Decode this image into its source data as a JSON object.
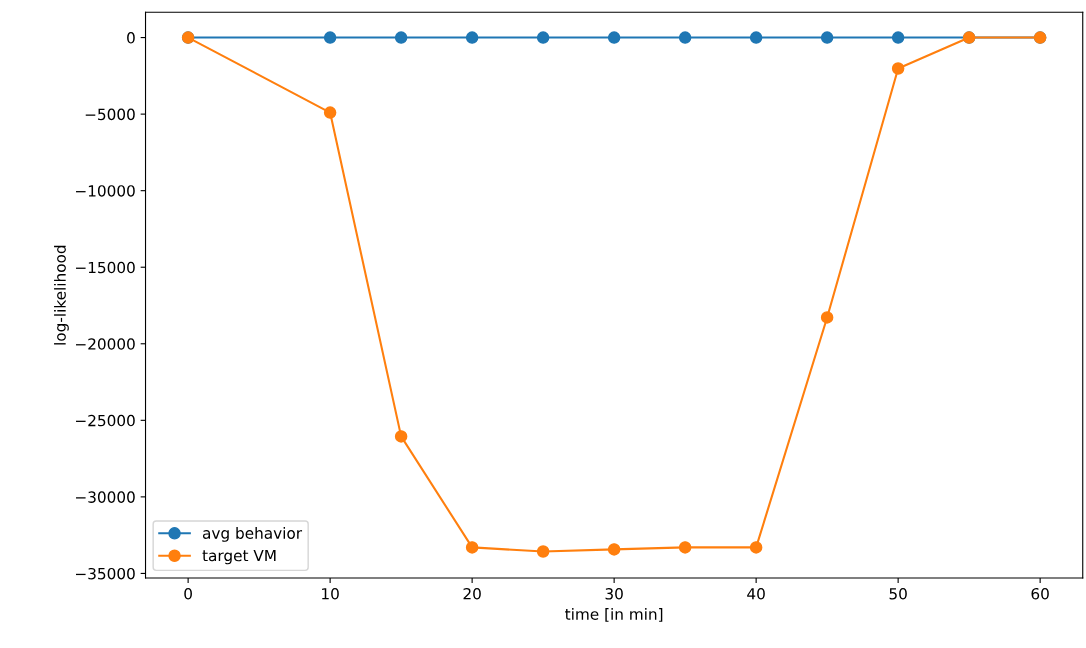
{
  "chart_data": {
    "type": "line",
    "xlabel": "time [in min]",
    "ylabel": "log-likelihood",
    "x": [
      0,
      10,
      15,
      20,
      25,
      30,
      35,
      40,
      45,
      50,
      55,
      60
    ],
    "series": [
      {
        "name": "avg behavior",
        "color": "#1f77b4",
        "values": [
          0,
          0,
          0,
          0,
          0,
          0,
          0,
          0,
          0,
          0,
          0,
          0
        ]
      },
      {
        "name": "target VM",
        "color": "#ff7f0e",
        "values": [
          0,
          -4900,
          -26050,
          -33300,
          -33570,
          -33430,
          -33300,
          -33300,
          -18280,
          -2020,
          0,
          0
        ]
      }
    ],
    "xlim": [
      -3,
      63
    ],
    "xticks": [
      0,
      10,
      20,
      30,
      40,
      50,
      60
    ],
    "ylim": [
      -35300,
      1650
    ],
    "yticks": [
      {
        "value": 0,
        "label": "0"
      },
      {
        "value": -5000,
        "label": "−5000"
      },
      {
        "value": -10000,
        "label": "−10000"
      },
      {
        "value": -15000,
        "label": "−15000"
      },
      {
        "value": -20000,
        "label": "−20000"
      },
      {
        "value": -25000,
        "label": "−25000"
      },
      {
        "value": -30000,
        "label": "−30000"
      },
      {
        "value": -35000,
        "label": "−35000"
      }
    ],
    "legend": "lower left",
    "marker": "circle",
    "line_style": "solid",
    "grid": false
  }
}
